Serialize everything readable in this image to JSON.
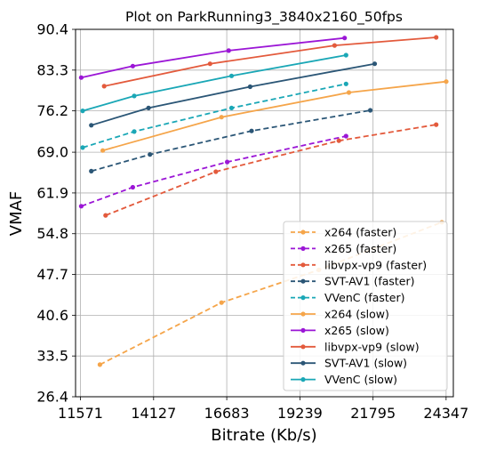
{
  "chart_data": {
    "type": "line",
    "title": "Plot on ParkRunning3_3840x2160_50fps",
    "xlabel": "Bitrate (Kb/s)",
    "ylabel": "VMAF",
    "xlim": [
      11400,
      24600
    ],
    "ylim": [
      26.4,
      90.4
    ],
    "x_ticks": [
      11571,
      14127,
      16683,
      19239,
      21795,
      24347
    ],
    "y_ticks": [
      26.4,
      33.5,
      40.6,
      47.7,
      54.8,
      61.9,
      69.0,
      76.2,
      83.3,
      90.4
    ],
    "grid": true,
    "legend_position": "lower right",
    "series": [
      {
        "name": "x264 (faster)",
        "color": "#f5a54a",
        "style": "dashed",
        "points": [
          [
            12250,
            32.0
          ],
          [
            16500,
            42.8
          ],
          [
            19900,
            48.5
          ],
          [
            24200,
            56.8
          ]
        ]
      },
      {
        "name": "x265 (faster)",
        "color": "#9b16d6",
        "style": "dashed",
        "points": [
          [
            11600,
            59.6
          ],
          [
            13400,
            62.9
          ],
          [
            16700,
            67.3
          ],
          [
            20850,
            71.8
          ]
        ]
      },
      {
        "name": "libvpx-vp9 (faster)",
        "color": "#e35a3c",
        "style": "dashed",
        "points": [
          [
            12450,
            58.0
          ],
          [
            16300,
            65.6
          ],
          [
            20600,
            71.0
          ],
          [
            24000,
            73.8
          ]
        ]
      },
      {
        "name": "SVT-AV1 (faster)",
        "color": "#2b5676",
        "style": "dashed",
        "points": [
          [
            11950,
            65.7
          ],
          [
            14000,
            68.6
          ],
          [
            17550,
            72.7
          ],
          [
            21700,
            76.3
          ]
        ]
      },
      {
        "name": "VVenC (faster)",
        "color": "#1aa7b6",
        "style": "dashed",
        "points": [
          [
            11650,
            69.8
          ],
          [
            13450,
            72.6
          ],
          [
            16850,
            76.7
          ],
          [
            20850,
            80.9
          ]
        ]
      },
      {
        "name": "x264 (slow)",
        "color": "#f5a54a",
        "style": "solid",
        "points": [
          [
            12350,
            69.3
          ],
          [
            16500,
            75.1
          ],
          [
            20950,
            79.4
          ],
          [
            24350,
            81.3
          ]
        ]
      },
      {
        "name": "x265 (slow)",
        "color": "#9b16d6",
        "style": "solid",
        "points": [
          [
            11600,
            82.0
          ],
          [
            13400,
            84.0
          ],
          [
            16750,
            86.7
          ],
          [
            20800,
            88.9
          ]
        ]
      },
      {
        "name": "libvpx-vp9 (slow)",
        "color": "#e35a3c",
        "style": "solid",
        "points": [
          [
            12400,
            80.5
          ],
          [
            16100,
            84.4
          ],
          [
            20450,
            87.6
          ],
          [
            24000,
            89.0
          ]
        ]
      },
      {
        "name": "SVT-AV1 (slow)",
        "color": "#2b5676",
        "style": "solid",
        "points": [
          [
            11950,
            73.7
          ],
          [
            13950,
            76.7
          ],
          [
            17500,
            80.4
          ],
          [
            21850,
            84.4
          ]
        ]
      },
      {
        "name": "VVenC (slow)",
        "color": "#1aa7b6",
        "style": "solid",
        "points": [
          [
            11650,
            76.2
          ],
          [
            13450,
            78.8
          ],
          [
            16850,
            82.3
          ],
          [
            20850,
            85.9
          ]
        ]
      }
    ]
  }
}
